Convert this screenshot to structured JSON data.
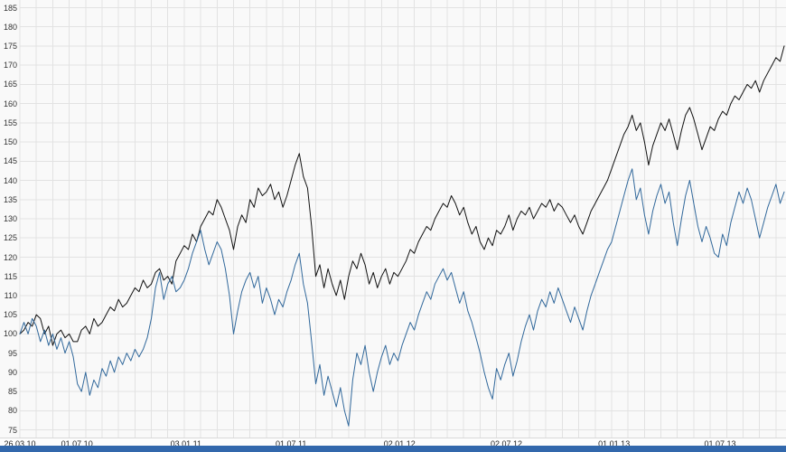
{
  "chart_data": {
    "type": "line",
    "title": "",
    "xlabel": "",
    "ylabel": "",
    "grid": true,
    "legend": "none",
    "ylim": [
      73,
      187
    ],
    "y_ticks": [
      185,
      180,
      175,
      170,
      165,
      160,
      155,
      150,
      145,
      140,
      135,
      130,
      125,
      120,
      115,
      110,
      105,
      100,
      95,
      90,
      85,
      80,
      75
    ],
    "x_tick_labels": [
      "26.03.10",
      "01.07.10",
      "03.01.11",
      "01.07.11",
      "02.01.12",
      "02.07.12",
      "01.01.13",
      "01.07.13"
    ],
    "x_tick_weeks": [
      0,
      13.9,
      40.4,
      66,
      92.4,
      118.4,
      144.6,
      170.4
    ],
    "x_unit": "weeks from 26.03.10",
    "x_grid_step": 4,
    "series": [
      {
        "name": "series-1-black",
        "color": "#111111",
        "values": [
          100,
          101,
          103,
          102,
          105,
          104,
          100,
          102,
          97,
          100,
          101,
          99,
          100,
          98,
          98,
          101,
          102,
          100,
          104,
          102,
          103,
          105,
          107,
          106,
          109,
          107,
          108,
          110,
          112,
          111,
          114,
          112,
          113,
          116,
          117,
          114,
          115,
          113,
          119,
          121,
          123,
          122,
          126,
          124,
          128,
          130,
          132,
          131,
          135,
          133,
          130,
          127,
          122,
          128,
          131,
          129,
          135,
          133,
          138,
          136,
          137,
          139,
          135,
          137,
          133,
          136,
          140,
          144,
          147,
          141,
          138,
          128,
          115,
          118,
          112,
          117,
          113,
          110,
          114,
          109,
          115,
          119,
          117,
          121,
          118,
          113,
          116,
          112,
          115,
          117,
          113,
          116,
          115,
          117,
          119,
          122,
          121,
          124,
          126,
          128,
          127,
          130,
          132,
          134,
          133,
          136,
          134,
          131,
          133,
          129,
          126,
          128,
          124,
          122,
          125,
          123,
          127,
          126,
          128,
          131,
          127,
          130,
          132,
          131,
          133,
          130,
          132,
          134,
          133,
          135,
          132,
          134,
          133,
          131,
          129,
          131,
          128,
          126,
          129,
          132,
          134,
          136,
          138,
          140,
          143,
          146,
          149,
          152,
          154,
          157,
          153,
          155,
          150,
          144,
          149,
          152,
          155,
          153,
          156,
          152,
          148,
          153,
          157,
          159,
          156,
          152,
          148,
          151,
          154,
          153,
          156,
          158,
          157,
          160,
          162,
          161,
          163,
          165,
          164,
          166,
          163,
          166,
          168,
          170,
          172,
          171,
          175
        ]
      },
      {
        "name": "series-2-blue",
        "color": "#31689b",
        "values": [
          100,
          103,
          100,
          104,
          102,
          98,
          101,
          97,
          100,
          96,
          99,
          95,
          98,
          94,
          87,
          85,
          90,
          84,
          88,
          86,
          91,
          89,
          93,
          90,
          94,
          92,
          95,
          93,
          96,
          94,
          96,
          99,
          104,
          112,
          116,
          109,
          113,
          115,
          111,
          112,
          114,
          117,
          121,
          124,
          127,
          122,
          118,
          121,
          124,
          122,
          117,
          110,
          100,
          106,
          111,
          114,
          116,
          112,
          115,
          108,
          112,
          109,
          105,
          109,
          107,
          111,
          114,
          118,
          121,
          113,
          108,
          98,
          87,
          92,
          84,
          89,
          85,
          81,
          86,
          80,
          76,
          88,
          95,
          92,
          97,
          90,
          85,
          90,
          94,
          97,
          92,
          95,
          93,
          97,
          100,
          103,
          101,
          105,
          108,
          111,
          109,
          113,
          115,
          117,
          114,
          116,
          112,
          108,
          111,
          106,
          103,
          99,
          95,
          90,
          86,
          83,
          91,
          88,
          92,
          95,
          89,
          93,
          98,
          102,
          105,
          101,
          106,
          109,
          107,
          111,
          108,
          112,
          109,
          106,
          103,
          107,
          104,
          101,
          106,
          110,
          113,
          116,
          119,
          122,
          124,
          128,
          132,
          136,
          140,
          143,
          135,
          138,
          131,
          126,
          132,
          136,
          139,
          134,
          137,
          129,
          123,
          130,
          136,
          140,
          134,
          128,
          124,
          128,
          125,
          121,
          120,
          126,
          123,
          129,
          133,
          137,
          134,
          138,
          135,
          130,
          125,
          129,
          133,
          136,
          139,
          134,
          137
        ]
      }
    ]
  },
  "colors": {
    "background": "#f9f9f9",
    "grid": "#e2e2e2",
    "axis_text": "#333333",
    "bottom_bar": "#3268ac"
  }
}
